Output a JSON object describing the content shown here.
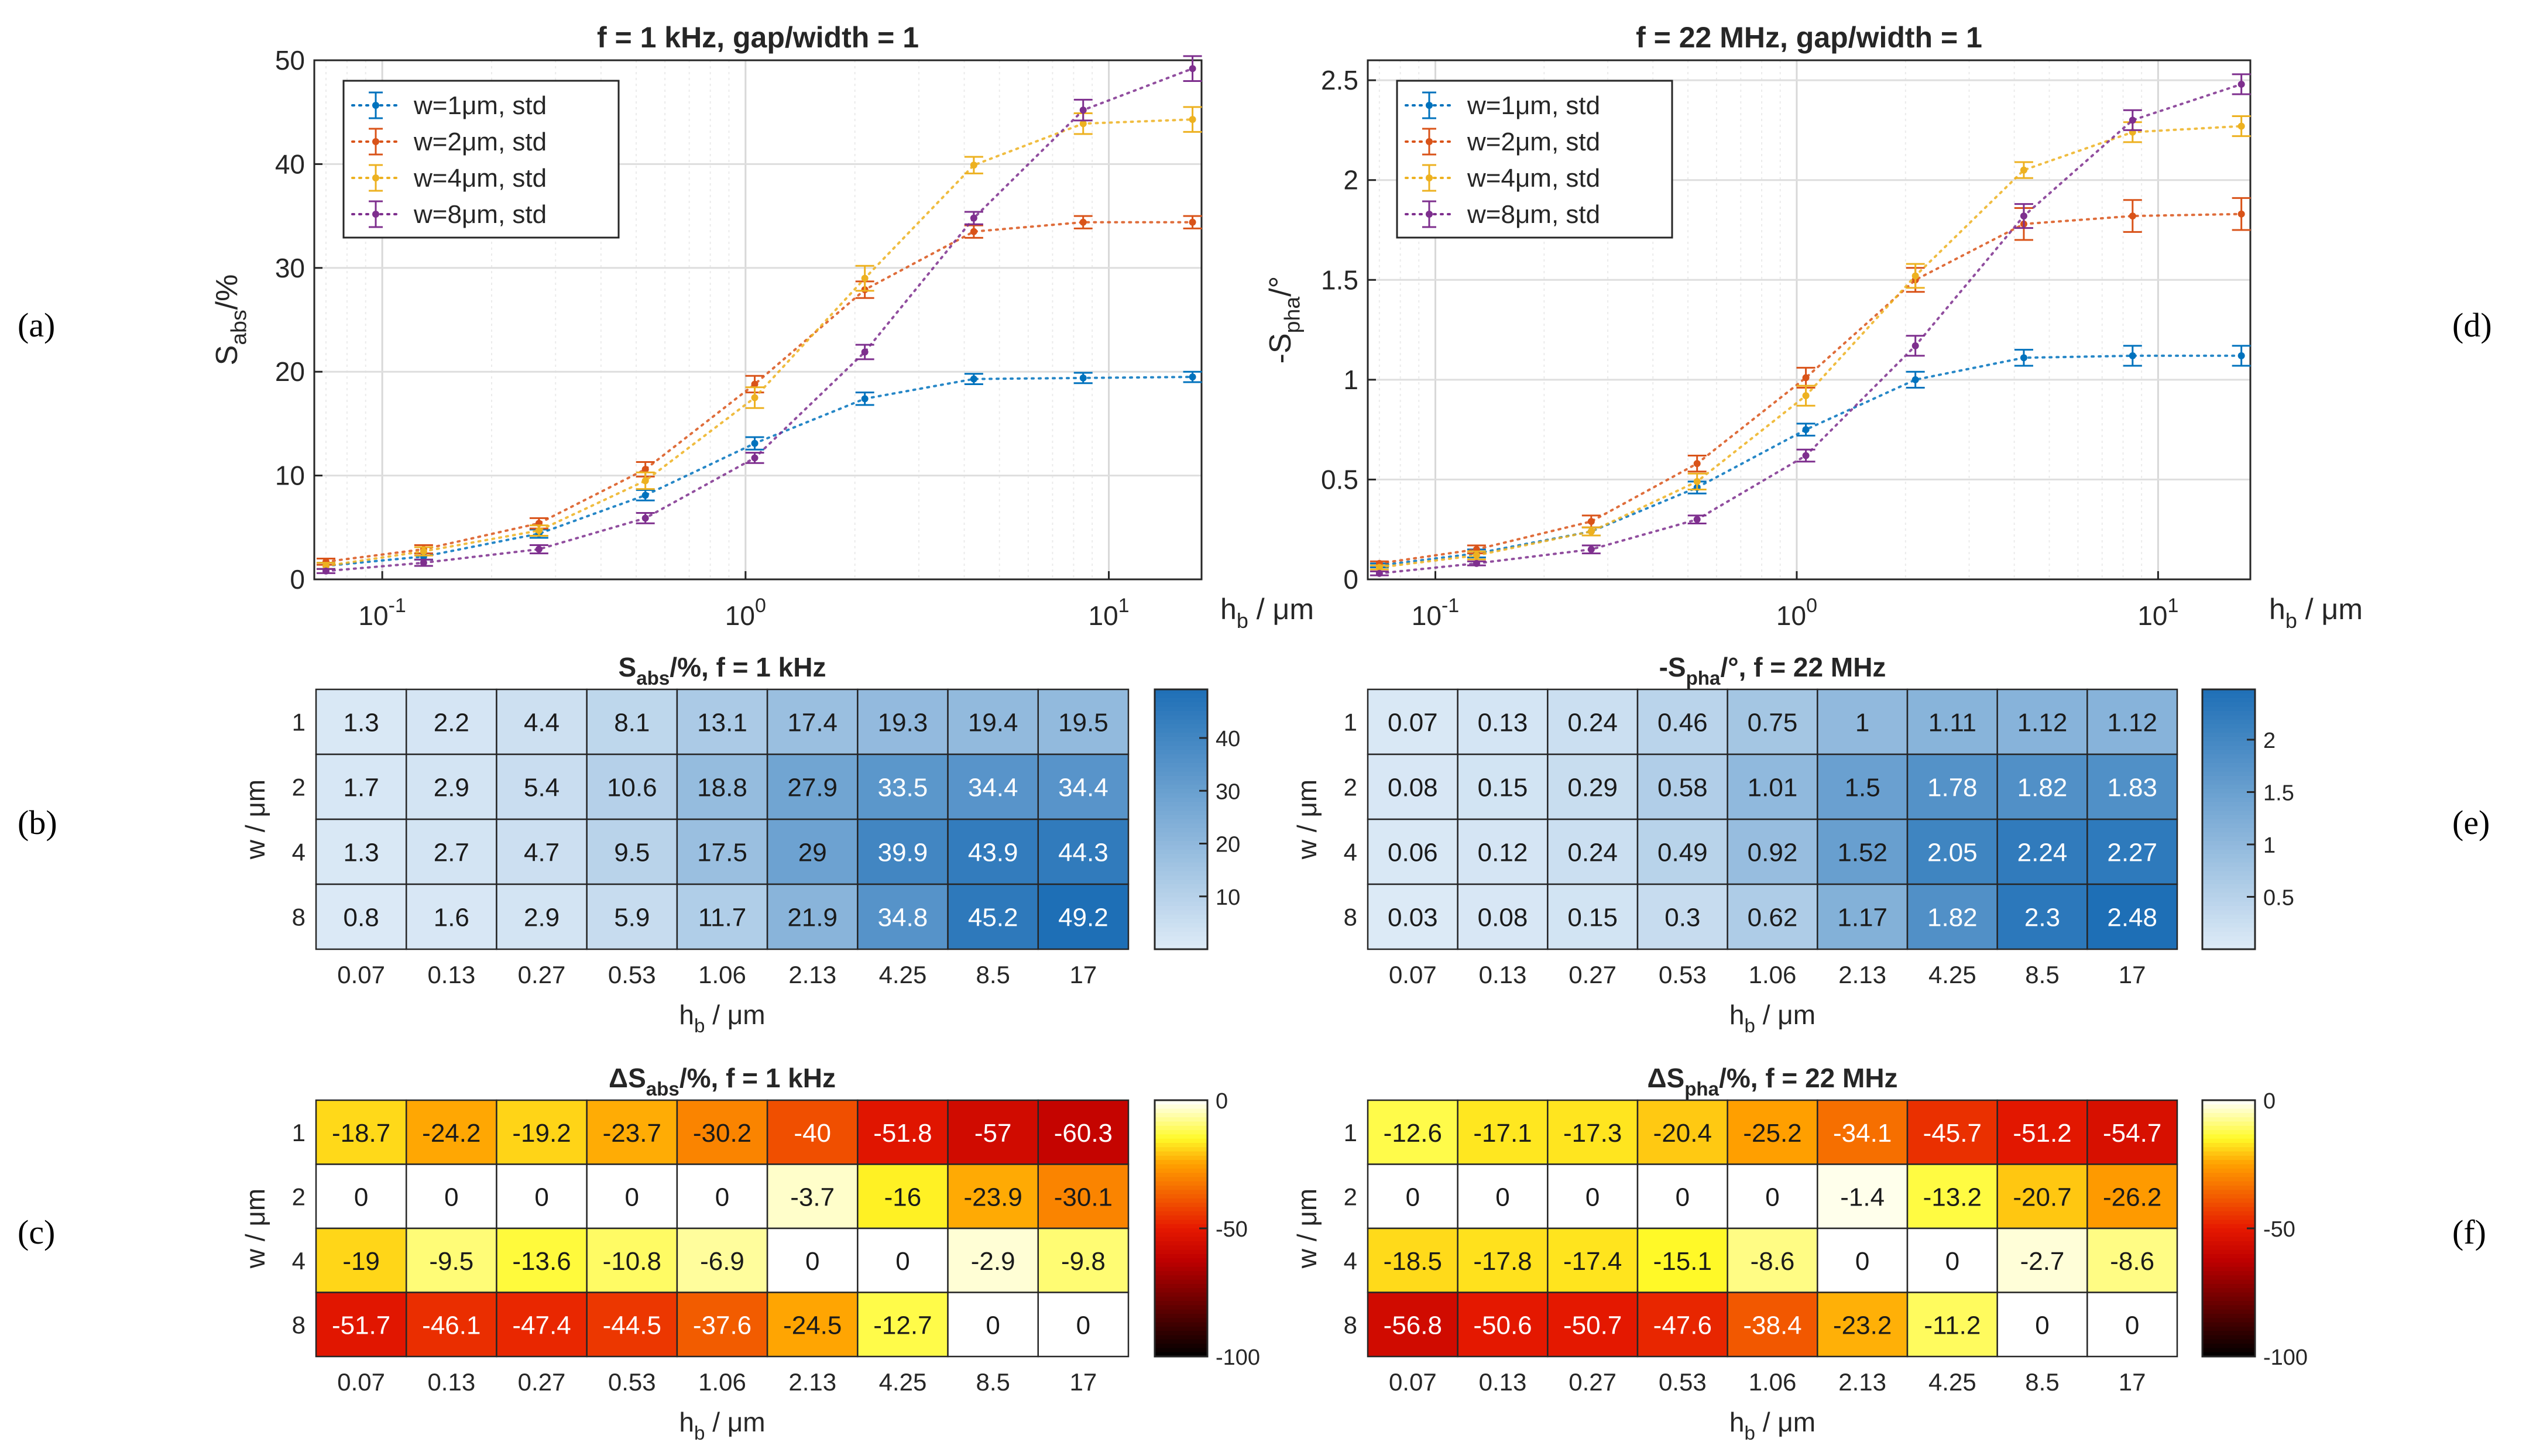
{
  "panel_labels": {
    "a": "(a)",
    "b": "(b)",
    "c": "(c)",
    "d": "(d)",
    "e": "(e)",
    "f": "(f)"
  },
  "colors": {
    "w1": "#0072BD",
    "w2": "#D95319",
    "w4": "#EDB120",
    "w8": "#7E2F8E"
  },
  "chart_data": [
    {
      "id": "a",
      "type": "line",
      "title": "f = 1 kHz, gap/width = 1",
      "xlabel": "h_b / μm",
      "ylabel": "S_abs/%",
      "xscale": "log",
      "xlim": [
        0.065,
        18
      ],
      "ylim": [
        0,
        50
      ],
      "yticks": [
        0,
        10,
        20,
        30,
        40,
        50
      ],
      "xticks": [
        {
          "value": 0.1,
          "base": "10",
          "exp": "-1"
        },
        {
          "value": 1,
          "base": "10",
          "exp": "0"
        },
        {
          "value": 10,
          "base": "10",
          "exp": "1"
        }
      ],
      "grid": true,
      "legend_position": "top-left",
      "x": [
        0.07,
        0.13,
        0.27,
        0.53,
        1.06,
        2.13,
        4.25,
        8.5,
        17
      ],
      "series": [
        {
          "name": "w=1μm, std",
          "color": "#0072BD",
          "values": [
            1.3,
            2.2,
            4.4,
            8.1,
            13.1,
            17.4,
            19.3,
            19.4,
            19.5
          ],
          "err": [
            0.3,
            0.3,
            0.4,
            0.5,
            0.6,
            0.6,
            0.5,
            0.5,
            0.5
          ]
        },
        {
          "name": "w=2μm, std",
          "color": "#D95319",
          "values": [
            1.7,
            2.9,
            5.4,
            10.6,
            18.8,
            27.9,
            33.5,
            34.4,
            34.4
          ],
          "err": [
            0.3,
            0.4,
            0.5,
            0.7,
            0.8,
            0.8,
            0.6,
            0.6,
            0.6
          ]
        },
        {
          "name": "w=4μm, std",
          "color": "#EDB120",
          "values": [
            1.3,
            2.7,
            4.7,
            9.5,
            17.5,
            29,
            39.9,
            43.9,
            44.3
          ],
          "err": [
            0.3,
            0.4,
            0.5,
            0.8,
            1.0,
            1.2,
            0.8,
            1.0,
            1.2
          ]
        },
        {
          "name": "w=8μm, std",
          "color": "#7E2F8E",
          "values": [
            0.8,
            1.6,
            2.9,
            5.9,
            11.7,
            21.9,
            34.8,
            45.2,
            49.2
          ],
          "err": [
            0.2,
            0.3,
            0.4,
            0.5,
            0.5,
            0.7,
            0.6,
            1.0,
            1.2
          ]
        }
      ]
    },
    {
      "id": "d",
      "type": "line",
      "title": "f = 22 MHz, gap/width = 1",
      "xlabel": "h_b / μm",
      "ylabel": "-S_pha/°",
      "xscale": "log",
      "xlim": [
        0.065,
        18
      ],
      "ylim": [
        0,
        2.6
      ],
      "yticks": [
        0,
        0.5,
        1,
        1.5,
        2,
        2.5
      ],
      "xticks": [
        {
          "value": 0.1,
          "base": "10",
          "exp": "-1"
        },
        {
          "value": 1,
          "base": "10",
          "exp": "0"
        },
        {
          "value": 10,
          "base": "10",
          "exp": "1"
        }
      ],
      "grid": true,
      "legend_position": "top-left",
      "x": [
        0.07,
        0.13,
        0.27,
        0.53,
        1.06,
        2.13,
        4.25,
        8.5,
        17
      ],
      "series": [
        {
          "name": "w=1μm, std",
          "color": "#0072BD",
          "values": [
            0.07,
            0.13,
            0.24,
            0.46,
            0.75,
            1,
            1.11,
            1.12,
            1.12
          ],
          "err": [
            0.01,
            0.02,
            0.02,
            0.03,
            0.03,
            0.04,
            0.04,
            0.05,
            0.05
          ]
        },
        {
          "name": "w=2μm, std",
          "color": "#D95319",
          "values": [
            0.08,
            0.15,
            0.29,
            0.58,
            1.01,
            1.5,
            1.78,
            1.82,
            1.83
          ],
          "err": [
            0.01,
            0.02,
            0.03,
            0.04,
            0.05,
            0.06,
            0.08,
            0.08,
            0.08
          ]
        },
        {
          "name": "w=4μm, std",
          "color": "#EDB120",
          "values": [
            0.06,
            0.12,
            0.24,
            0.49,
            0.92,
            1.52,
            2.05,
            2.24,
            2.27
          ],
          "err": [
            0.01,
            0.02,
            0.02,
            0.04,
            0.05,
            0.06,
            0.04,
            0.05,
            0.05
          ]
        },
        {
          "name": "w=8μm, std",
          "color": "#7E2F8E",
          "values": [
            0.03,
            0.08,
            0.15,
            0.3,
            0.62,
            1.17,
            1.82,
            2.3,
            2.48
          ],
          "err": [
            0.01,
            0.01,
            0.02,
            0.02,
            0.03,
            0.05,
            0.06,
            0.05,
            0.05
          ]
        }
      ]
    },
    {
      "id": "b",
      "type": "heatmap",
      "title": "S_abs/%, f = 1 kHz",
      "xlabel": "h_b / μm",
      "ylabel": "w / μm",
      "x": [
        "0.07",
        "0.13",
        "0.27",
        "0.53",
        "1.06",
        "2.13",
        "4.25",
        "8.5",
        "17"
      ],
      "y": [
        "1",
        "2",
        "4",
        "8"
      ],
      "values": [
        [
          "1.3",
          "2.2",
          "4.4",
          "8.1",
          "13.1",
          "17.4",
          "19.3",
          "19.4",
          "19.5"
        ],
        [
          "1.7",
          "2.9",
          "5.4",
          "10.6",
          "18.8",
          "27.9",
          "33.5",
          "34.4",
          "34.4"
        ],
        [
          "1.3",
          "2.7",
          "4.7",
          "9.5",
          "17.5",
          "29",
          "39.9",
          "43.9",
          "44.3"
        ],
        [
          "0.8",
          "1.6",
          "2.9",
          "5.9",
          "11.7",
          "21.9",
          "34.8",
          "45.2",
          "49.2"
        ]
      ],
      "colormap": "blues",
      "clim": [
        0,
        49.2
      ],
      "colorbar_ticks": [
        "10",
        "20",
        "30",
        "40"
      ]
    },
    {
      "id": "e",
      "type": "heatmap",
      "title": "-S_pha/°, f = 22 MHz",
      "xlabel": "h_b / μm",
      "ylabel": "w / μm",
      "x": [
        "0.07",
        "0.13",
        "0.27",
        "0.53",
        "1.06",
        "2.13",
        "4.25",
        "8.5",
        "17"
      ],
      "y": [
        "1",
        "2",
        "4",
        "8"
      ],
      "values": [
        [
          "0.07",
          "0.13",
          "0.24",
          "0.46",
          "0.75",
          "1",
          "1.11",
          "1.12",
          "1.12"
        ],
        [
          "0.08",
          "0.15",
          "0.29",
          "0.58",
          "1.01",
          "1.5",
          "1.78",
          "1.82",
          "1.83"
        ],
        [
          "0.06",
          "0.12",
          "0.24",
          "0.49",
          "0.92",
          "1.52",
          "2.05",
          "2.24",
          "2.27"
        ],
        [
          "0.03",
          "0.08",
          "0.15",
          "0.3",
          "0.62",
          "1.17",
          "1.82",
          "2.3",
          "2.48"
        ]
      ],
      "colormap": "blues",
      "clim": [
        0,
        2.48
      ],
      "colorbar_ticks": [
        "0.5",
        "1",
        "1.5",
        "2"
      ]
    },
    {
      "id": "c",
      "type": "heatmap",
      "title": "ΔS_abs/%, f = 1 kHz",
      "xlabel": "h_b / μm",
      "ylabel": "w / μm",
      "x": [
        "0.07",
        "0.13",
        "0.27",
        "0.53",
        "1.06",
        "2.13",
        "4.25",
        "8.5",
        "17"
      ],
      "y": [
        "1",
        "2",
        "4",
        "8"
      ],
      "values": [
        [
          "-18.7",
          "-24.2",
          "-19.2",
          "-23.7",
          "-30.2",
          "-40",
          "-51.8",
          "-57",
          "-60.3"
        ],
        [
          "0",
          "0",
          "0",
          "0",
          "0",
          "-3.7",
          "-16",
          "-23.9",
          "-30.1"
        ],
        [
          "-19",
          "-9.5",
          "-13.6",
          "-10.8",
          "-6.9",
          "0",
          "0",
          "-2.9",
          "-9.8"
        ],
        [
          "-51.7",
          "-46.1",
          "-47.4",
          "-44.5",
          "-37.6",
          "-24.5",
          "-12.7",
          "0",
          "0"
        ]
      ],
      "colormap": "hot",
      "clim": [
        -100,
        0
      ],
      "colorbar_ticks": [
        "0",
        "-50",
        "-100"
      ]
    },
    {
      "id": "f",
      "type": "heatmap",
      "title": "ΔS_pha/%, f = 22 MHz",
      "xlabel": "h_b / μm",
      "ylabel": "w / μm",
      "x": [
        "0.07",
        "0.13",
        "0.27",
        "0.53",
        "1.06",
        "2.13",
        "4.25",
        "8.5",
        "17"
      ],
      "y": [
        "1",
        "2",
        "4",
        "8"
      ],
      "values": [
        [
          "-12.6",
          "-17.1",
          "-17.3",
          "-20.4",
          "-25.2",
          "-34.1",
          "-45.7",
          "-51.2",
          "-54.7"
        ],
        [
          "0",
          "0",
          "0",
          "0",
          "0",
          "-1.4",
          "-13.2",
          "-20.7",
          "-26.2"
        ],
        [
          "-18.5",
          "-17.8",
          "-17.4",
          "-15.1",
          "-8.6",
          "0",
          "0",
          "-2.7",
          "-8.6"
        ],
        [
          "-56.8",
          "-50.6",
          "-50.7",
          "-47.6",
          "-38.4",
          "-23.2",
          "-11.2",
          "0",
          "0"
        ]
      ],
      "colormap": "hot",
      "clim": [
        -100,
        0
      ],
      "colorbar_ticks": [
        "0",
        "-50",
        "-100"
      ]
    }
  ]
}
